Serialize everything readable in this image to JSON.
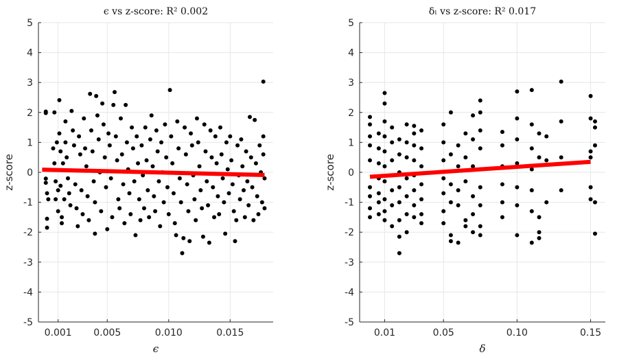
{
  "chart_data": [
    {
      "type": "scatter",
      "title": "ϵ vs z-score: R² 0.002",
      "xlabel": "ϵ",
      "ylabel": "z-score",
      "xlim": [
        -0.0006,
        0.0185
      ],
      "ylim": [
        -5,
        5
      ],
      "xticks": [
        0.001,
        0.005,
        0.01,
        0.015
      ],
      "xtick_labels": [
        "0.001",
        "0.005",
        "0.010",
        "0.015"
      ],
      "yticks": [
        -5,
        -4,
        -3,
        -2,
        -1,
        0,
        1,
        2,
        3,
        4,
        5
      ],
      "ytick_labels": [
        "-5",
        "-4",
        "-3",
        "-2",
        "-1",
        "0",
        "1",
        "2",
        "3",
        "4",
        "5"
      ],
      "grid": true,
      "point_color": "#000000",
      "fit_color": "#ff0000",
      "fit_line": {
        "x": [
          -0.0003,
          0.0178
        ],
        "y": [
          0.09,
          -0.09
        ]
      },
      "points": [
        [
          0.0,
          2.03
        ],
        [
          0.0,
          1.98
        ],
        [
          0.0,
          -0.21
        ],
        [
          0.0,
          -0.35
        ],
        [
          0.0001,
          -0.7
        ],
        [
          0.0001,
          -1.55
        ],
        [
          0.0001,
          -1.85
        ],
        [
          0.0002,
          -0.9
        ],
        [
          0.0006,
          0.8
        ],
        [
          0.0007,
          2.0
        ],
        [
          0.0007,
          0.3
        ],
        [
          0.0008,
          -0.3
        ],
        [
          0.0008,
          -0.9
        ],
        [
          0.0009,
          1.0
        ],
        [
          0.001,
          -0.6
        ],
        [
          0.001,
          -1.3
        ],
        [
          0.0011,
          2.41
        ],
        [
          0.0011,
          1.3
        ],
        [
          0.0012,
          0.7
        ],
        [
          0.0012,
          -0.45
        ],
        [
          0.0013,
          -1.5
        ],
        [
          0.0013,
          -1.7
        ],
        [
          0.0014,
          0.3
        ],
        [
          0.0015,
          -0.9
        ],
        [
          0.0016,
          1.7
        ],
        [
          0.0016,
          1.0
        ],
        [
          0.0017,
          0.5
        ],
        [
          0.0018,
          -0.2
        ],
        [
          0.0019,
          -0.7
        ],
        [
          0.002,
          -1.1
        ],
        [
          0.0021,
          2.05
        ],
        [
          0.0022,
          1.4
        ],
        [
          0.0023,
          0.9
        ],
        [
          0.0024,
          -0.4
        ],
        [
          0.0025,
          -1.2
        ],
        [
          0.0026,
          -1.8
        ],
        [
          0.0027,
          1.2
        ],
        [
          0.0028,
          0.6
        ],
        [
          0.0029,
          -0.6
        ],
        [
          0.003,
          -1.4
        ],
        [
          0.0031,
          1.8
        ],
        [
          0.0032,
          0.8
        ],
        [
          0.0033,
          0.2
        ],
        [
          0.0034,
          -0.8
        ],
        [
          0.0035,
          -1.6
        ],
        [
          0.0036,
          2.62
        ],
        [
          0.0037,
          1.4
        ],
        [
          0.0038,
          0.7
        ],
        [
          0.0039,
          -0.3
        ],
        [
          0.004,
          -1.0
        ],
        [
          0.004,
          -2.05
        ],
        [
          0.0041,
          2.55
        ],
        [
          0.0042,
          1.9
        ],
        [
          0.0043,
          1.1
        ],
        [
          0.0044,
          0.0
        ],
        [
          0.0045,
          -1.3
        ],
        [
          0.0046,
          2.3
        ],
        [
          0.0047,
          1.6
        ],
        [
          0.0048,
          0.5
        ],
        [
          0.0049,
          -0.5
        ],
        [
          0.005,
          -1.9
        ],
        [
          0.0051,
          1.3
        ],
        [
          0.0052,
          0.9
        ],
        [
          0.0053,
          -0.2
        ],
        [
          0.0054,
          -1.5
        ],
        [
          0.0055,
          2.25
        ],
        [
          0.0056,
          2.68
        ],
        [
          0.0057,
          1.2
        ],
        [
          0.0058,
          0.4
        ],
        [
          0.0059,
          -0.9
        ],
        [
          0.006,
          -1.2
        ],
        [
          0.0061,
          1.8
        ],
        [
          0.0062,
          0.6
        ],
        [
          0.0063,
          -0.4
        ],
        [
          0.0064,
          -1.7
        ],
        [
          0.0065,
          2.25
        ],
        [
          0.0066,
          1.0
        ],
        [
          0.0067,
          0.1
        ],
        [
          0.0068,
          -0.7
        ],
        [
          0.0069,
          -1.4
        ],
        [
          0.007,
          1.5
        ],
        [
          0.0071,
          0.8
        ],
        [
          0.0072,
          -0.3
        ],
        [
          0.0073,
          -2.1
        ],
        [
          0.0074,
          1.2
        ],
        [
          0.0075,
          0.3
        ],
        [
          0.0076,
          -0.9
        ],
        [
          0.0077,
          -1.6
        ],
        [
          0.0078,
          0.9
        ],
        [
          0.0079,
          -0.1
        ],
        [
          0.008,
          -1.2
        ],
        [
          0.0081,
          1.5
        ],
        [
          0.0082,
          0.4
        ],
        [
          0.0083,
          -0.6
        ],
        [
          0.0084,
          -1.5
        ],
        [
          0.0085,
          1.1
        ],
        [
          0.0086,
          1.9
        ],
        [
          0.0087,
          0.2
        ],
        [
          0.0088,
          -0.8
        ],
        [
          0.0089,
          -1.3
        ],
        [
          0.009,
          1.4
        ],
        [
          0.0091,
          0.7
        ],
        [
          0.0092,
          -0.3
        ],
        [
          0.0093,
          -1.8
        ],
        [
          0.0094,
          1.0
        ],
        [
          0.0095,
          0.0
        ],
        [
          0.0096,
          -1.0
        ],
        [
          0.0097,
          1.6
        ],
        [
          0.0098,
          0.5
        ],
        [
          0.0099,
          -0.5
        ],
        [
          0.01,
          -1.4
        ],
        [
          0.0101,
          2.75
        ],
        [
          0.0102,
          1.2
        ],
        [
          0.0103,
          0.3
        ],
        [
          0.0104,
          -0.7
        ],
        [
          0.0105,
          -1.7
        ],
        [
          0.0106,
          -2.1
        ],
        [
          0.0107,
          1.7
        ],
        [
          0.0108,
          0.8
        ],
        [
          0.0109,
          -0.2
        ],
        [
          0.011,
          -1.0
        ],
        [
          0.0111,
          -2.7
        ],
        [
          0.0112,
          -2.2
        ],
        [
          0.0113,
          1.5
        ],
        [
          0.0114,
          0.6
        ],
        [
          0.0115,
          -0.4
        ],
        [
          0.0116,
          -1.3
        ],
        [
          0.0117,
          -2.3
        ],
        [
          0.0118,
          1.3
        ],
        [
          0.0119,
          0.9
        ],
        [
          0.012,
          -0.1
        ],
        [
          0.0121,
          -0.9
        ],
        [
          0.0122,
          -1.6
        ],
        [
          0.0123,
          1.8
        ],
        [
          0.0124,
          1.0
        ],
        [
          0.0125,
          0.2
        ],
        [
          0.0126,
          -0.6
        ],
        [
          0.0127,
          -1.2
        ],
        [
          0.0128,
          -2.15
        ],
        [
          0.0129,
          1.6
        ],
        [
          0.013,
          0.7
        ],
        [
          0.0131,
          -0.3
        ],
        [
          0.0132,
          -1.1
        ],
        [
          0.0133,
          -2.35
        ],
        [
          0.0134,
          1.4
        ],
        [
          0.0135,
          0.5
        ],
        [
          0.0136,
          -0.5
        ],
        [
          0.0137,
          -1.5
        ],
        [
          0.0138,
          1.2
        ],
        [
          0.0139,
          0.3
        ],
        [
          0.014,
          -0.8
        ],
        [
          0.0141,
          -1.4
        ],
        [
          0.0142,
          1.5
        ],
        [
          0.0143,
          0.6
        ],
        [
          0.0144,
          -0.2
        ],
        [
          0.0145,
          -1.0
        ],
        [
          0.0146,
          -2.05
        ],
        [
          0.0147,
          1.0
        ],
        [
          0.0148,
          0.1
        ],
        [
          0.0149,
          -0.7
        ],
        [
          0.015,
          1.2
        ],
        [
          0.0151,
          0.4
        ],
        [
          0.0152,
          -0.4
        ],
        [
          0.0153,
          -1.3
        ],
        [
          0.0154,
          -2.3
        ],
        [
          0.0155,
          -1.6
        ],
        [
          0.0156,
          0.9
        ],
        [
          0.0157,
          -0.1
        ],
        [
          0.0158,
          -0.9
        ],
        [
          0.0159,
          1.1
        ],
        [
          0.016,
          0.2
        ],
        [
          0.0161,
          -0.6
        ],
        [
          0.0162,
          -1.5
        ],
        [
          0.0163,
          0.7
        ],
        [
          0.0164,
          -0.3
        ],
        [
          0.0165,
          -1.1
        ],
        [
          0.0166,
          1.85
        ],
        [
          0.0167,
          0.5
        ],
        [
          0.0168,
          -0.5
        ],
        [
          0.0169,
          -1.6
        ],
        [
          0.017,
          1.75
        ],
        [
          0.0171,
          0.3
        ],
        [
          0.0172,
          -0.8
        ],
        [
          0.0173,
          -1.4
        ],
        [
          0.0174,
          0.9
        ],
        [
          0.0175,
          0.0
        ],
        [
          0.0176,
          -1.0
        ],
        [
          0.0177,
          3.03
        ],
        [
          0.0177,
          1.2
        ],
        [
          0.0177,
          0.6
        ],
        [
          0.0178,
          -0.2
        ],
        [
          0.0178,
          -1.2
        ]
      ]
    },
    {
      "type": "scatter",
      "title": "δₗ vs z-score: R² 0.017",
      "xlabel": "δ",
      "ylabel": "z-score",
      "xlim": [
        -0.007,
        0.16
      ],
      "ylim": [
        -5,
        5
      ],
      "xticks": [
        0.01,
        0.05,
        0.1,
        0.15
      ],
      "xtick_labels": [
        "0.01",
        "0.05",
        "0.10",
        "0.15"
      ],
      "yticks": [
        -5,
        -4,
        -3,
        -2,
        -1,
        0,
        1,
        2,
        3,
        4,
        5
      ],
      "ytick_labels": [
        "-5",
        "-4",
        "-3",
        "-2",
        "-1",
        "0",
        "1",
        "2",
        "3",
        "4",
        "5"
      ],
      "grid": true,
      "point_color": "#000000",
      "fit_color": "#ff0000",
      "fit_line": {
        "x": [
          0.0,
          0.15
        ],
        "y": [
          -0.15,
          0.35
        ]
      },
      "points": [
        [
          0.0,
          1.85
        ],
        [
          0.0,
          1.6
        ],
        [
          0.0,
          1.2
        ],
        [
          0.0,
          0.9
        ],
        [
          0.0,
          0.4
        ],
        [
          0.0,
          -0.5
        ],
        [
          0.0,
          -0.8
        ],
        [
          0.0,
          -1.2
        ],
        [
          0.0,
          -1.5
        ],
        [
          0.006,
          1.3
        ],
        [
          0.006,
          0.8
        ],
        [
          0.006,
          0.3
        ],
        [
          0.006,
          -0.2
        ],
        [
          0.006,
          -0.7
        ],
        [
          0.006,
          -1.0
        ],
        [
          0.006,
          -1.4
        ],
        [
          0.01,
          2.65
        ],
        [
          0.01,
          2.3
        ],
        [
          0.01,
          1.7
        ],
        [
          0.01,
          1.2
        ],
        [
          0.01,
          0.7
        ],
        [
          0.01,
          0.2
        ],
        [
          0.01,
          -0.3
        ],
        [
          0.01,
          -0.9
        ],
        [
          0.01,
          -1.3
        ],
        [
          0.01,
          -1.6
        ],
        [
          0.015,
          1.5
        ],
        [
          0.015,
          1.0
        ],
        [
          0.015,
          0.4
        ],
        [
          0.015,
          -0.1
        ],
        [
          0.015,
          -0.6
        ],
        [
          0.015,
          -1.1
        ],
        [
          0.015,
          -1.8
        ],
        [
          0.02,
          1.1
        ],
        [
          0.02,
          0.6
        ],
        [
          0.02,
          0.0
        ],
        [
          0.02,
          -0.5
        ],
        [
          0.02,
          -1.0
        ],
        [
          0.02,
          -1.6
        ],
        [
          0.02,
          -2.15
        ],
        [
          0.02,
          -2.7
        ],
        [
          0.025,
          1.6
        ],
        [
          0.025,
          1.0
        ],
        [
          0.025,
          0.5
        ],
        [
          0.025,
          -0.2
        ],
        [
          0.025,
          -0.8
        ],
        [
          0.025,
          -1.4
        ],
        [
          0.025,
          -2.0
        ],
        [
          0.03,
          1.55
        ],
        [
          0.03,
          1.3
        ],
        [
          0.03,
          0.9
        ],
        [
          0.03,
          0.4
        ],
        [
          0.03,
          -0.1
        ],
        [
          0.03,
          -0.6
        ],
        [
          0.03,
          -1.1
        ],
        [
          0.03,
          -1.5
        ],
        [
          0.035,
          1.4
        ],
        [
          0.035,
          0.8
        ],
        [
          0.035,
          0.2
        ],
        [
          0.035,
          -0.4
        ],
        [
          0.035,
          -0.9
        ],
        [
          0.035,
          -1.4
        ],
        [
          0.035,
          -1.7
        ],
        [
          0.05,
          1.6
        ],
        [
          0.05,
          1.0
        ],
        [
          0.05,
          0.4
        ],
        [
          0.05,
          -0.2
        ],
        [
          0.05,
          -0.7
        ],
        [
          0.05,
          -1.3
        ],
        [
          0.05,
          -1.7
        ],
        [
          0.055,
          2.0
        ],
        [
          0.055,
          0.6
        ],
        [
          0.055,
          -0.4
        ],
        [
          0.055,
          -1.0
        ],
        [
          0.055,
          -2.1
        ],
        [
          0.055,
          -2.3
        ],
        [
          0.06,
          0.9
        ],
        [
          0.06,
          0.2
        ],
        [
          0.06,
          -0.6
        ],
        [
          0.06,
          -1.1
        ],
        [
          0.06,
          -2.35
        ],
        [
          0.065,
          1.3
        ],
        [
          0.065,
          0.5
        ],
        [
          0.065,
          -0.3
        ],
        [
          0.065,
          -1.6
        ],
        [
          0.065,
          -1.8
        ],
        [
          0.07,
          1.9
        ],
        [
          0.07,
          1.1
        ],
        [
          0.07,
          0.2
        ],
        [
          0.07,
          -0.8
        ],
        [
          0.07,
          -1.4
        ],
        [
          0.07,
          -2.0
        ],
        [
          0.075,
          2.4
        ],
        [
          0.075,
          2.0
        ],
        [
          0.075,
          1.4
        ],
        [
          0.075,
          0.8
        ],
        [
          0.075,
          0.1
        ],
        [
          0.075,
          -0.5
        ],
        [
          0.075,
          -1.1
        ],
        [
          0.075,
          -1.8
        ],
        [
          0.075,
          -2.1
        ],
        [
          0.09,
          1.35
        ],
        [
          0.09,
          0.9
        ],
        [
          0.09,
          0.2
        ],
        [
          0.09,
          -0.4
        ],
        [
          0.09,
          -1.0
        ],
        [
          0.09,
          -1.5
        ],
        [
          0.1,
          2.7
        ],
        [
          0.1,
          1.8
        ],
        [
          0.1,
          1.1
        ],
        [
          0.1,
          0.3
        ],
        [
          0.1,
          -0.5
        ],
        [
          0.1,
          -1.1
        ],
        [
          0.1,
          -2.1
        ],
        [
          0.11,
          2.75
        ],
        [
          0.11,
          1.6
        ],
        [
          0.11,
          0.8
        ],
        [
          0.11,
          0.1
        ],
        [
          0.11,
          -0.6
        ],
        [
          0.11,
          -1.3
        ],
        [
          0.11,
          -2.35
        ],
        [
          0.115,
          1.3
        ],
        [
          0.115,
          0.5
        ],
        [
          0.115,
          -1.5
        ],
        [
          0.115,
          -2.0
        ],
        [
          0.115,
          -2.2
        ],
        [
          0.12,
          1.2
        ],
        [
          0.12,
          0.4
        ],
        [
          0.12,
          -1.0
        ],
        [
          0.13,
          3.03
        ],
        [
          0.13,
          1.7
        ],
        [
          0.13,
          0.5
        ],
        [
          0.13,
          -0.6
        ],
        [
          0.15,
          2.55
        ],
        [
          0.15,
          1.8
        ],
        [
          0.15,
          0.7
        ],
        [
          0.15,
          0.5
        ],
        [
          0.15,
          -0.5
        ],
        [
          0.15,
          -0.9
        ],
        [
          0.153,
          1.7
        ],
        [
          0.153,
          1.5
        ],
        [
          0.153,
          0.9
        ],
        [
          0.153,
          -1.0
        ],
        [
          0.153,
          -2.05
        ]
      ]
    }
  ]
}
